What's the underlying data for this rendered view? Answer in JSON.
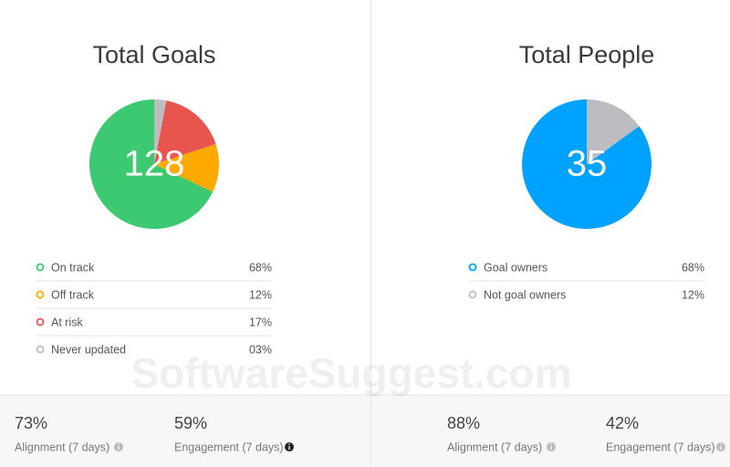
{
  "chart_data": [
    {
      "type": "pie",
      "title": "Total Goals",
      "total": 128,
      "categories": [
        "On track",
        "Off track",
        "At risk",
        "Never updated"
      ],
      "values": [
        68,
        12,
        17,
        3
      ],
      "value_labels": [
        "68%",
        "12%",
        "17%",
        "03%"
      ],
      "colors": [
        "#3cc971",
        "#ffaa00",
        "#e8554e",
        "#bdbdc1"
      ]
    },
    {
      "type": "pie",
      "title": "Total People",
      "total": 35,
      "categories": [
        "Goal owners",
        "Not goal owners"
      ],
      "values": [
        68,
        12
      ],
      "value_labels": [
        "68%",
        "12%"
      ],
      "colors": [
        "#00a2ff",
        "#bdbdc1"
      ]
    }
  ],
  "stats": [
    {
      "value": "73%",
      "label": "Alignment (7 days)"
    },
    {
      "value": "59%",
      "label": "Engagement (7 days)"
    },
    {
      "value": "88%",
      "label": "Alignment (7 days)"
    },
    {
      "value": "42%",
      "label": "Engagement (7 days)"
    }
  ],
  "watermark": "SoftwareSuggest.com"
}
